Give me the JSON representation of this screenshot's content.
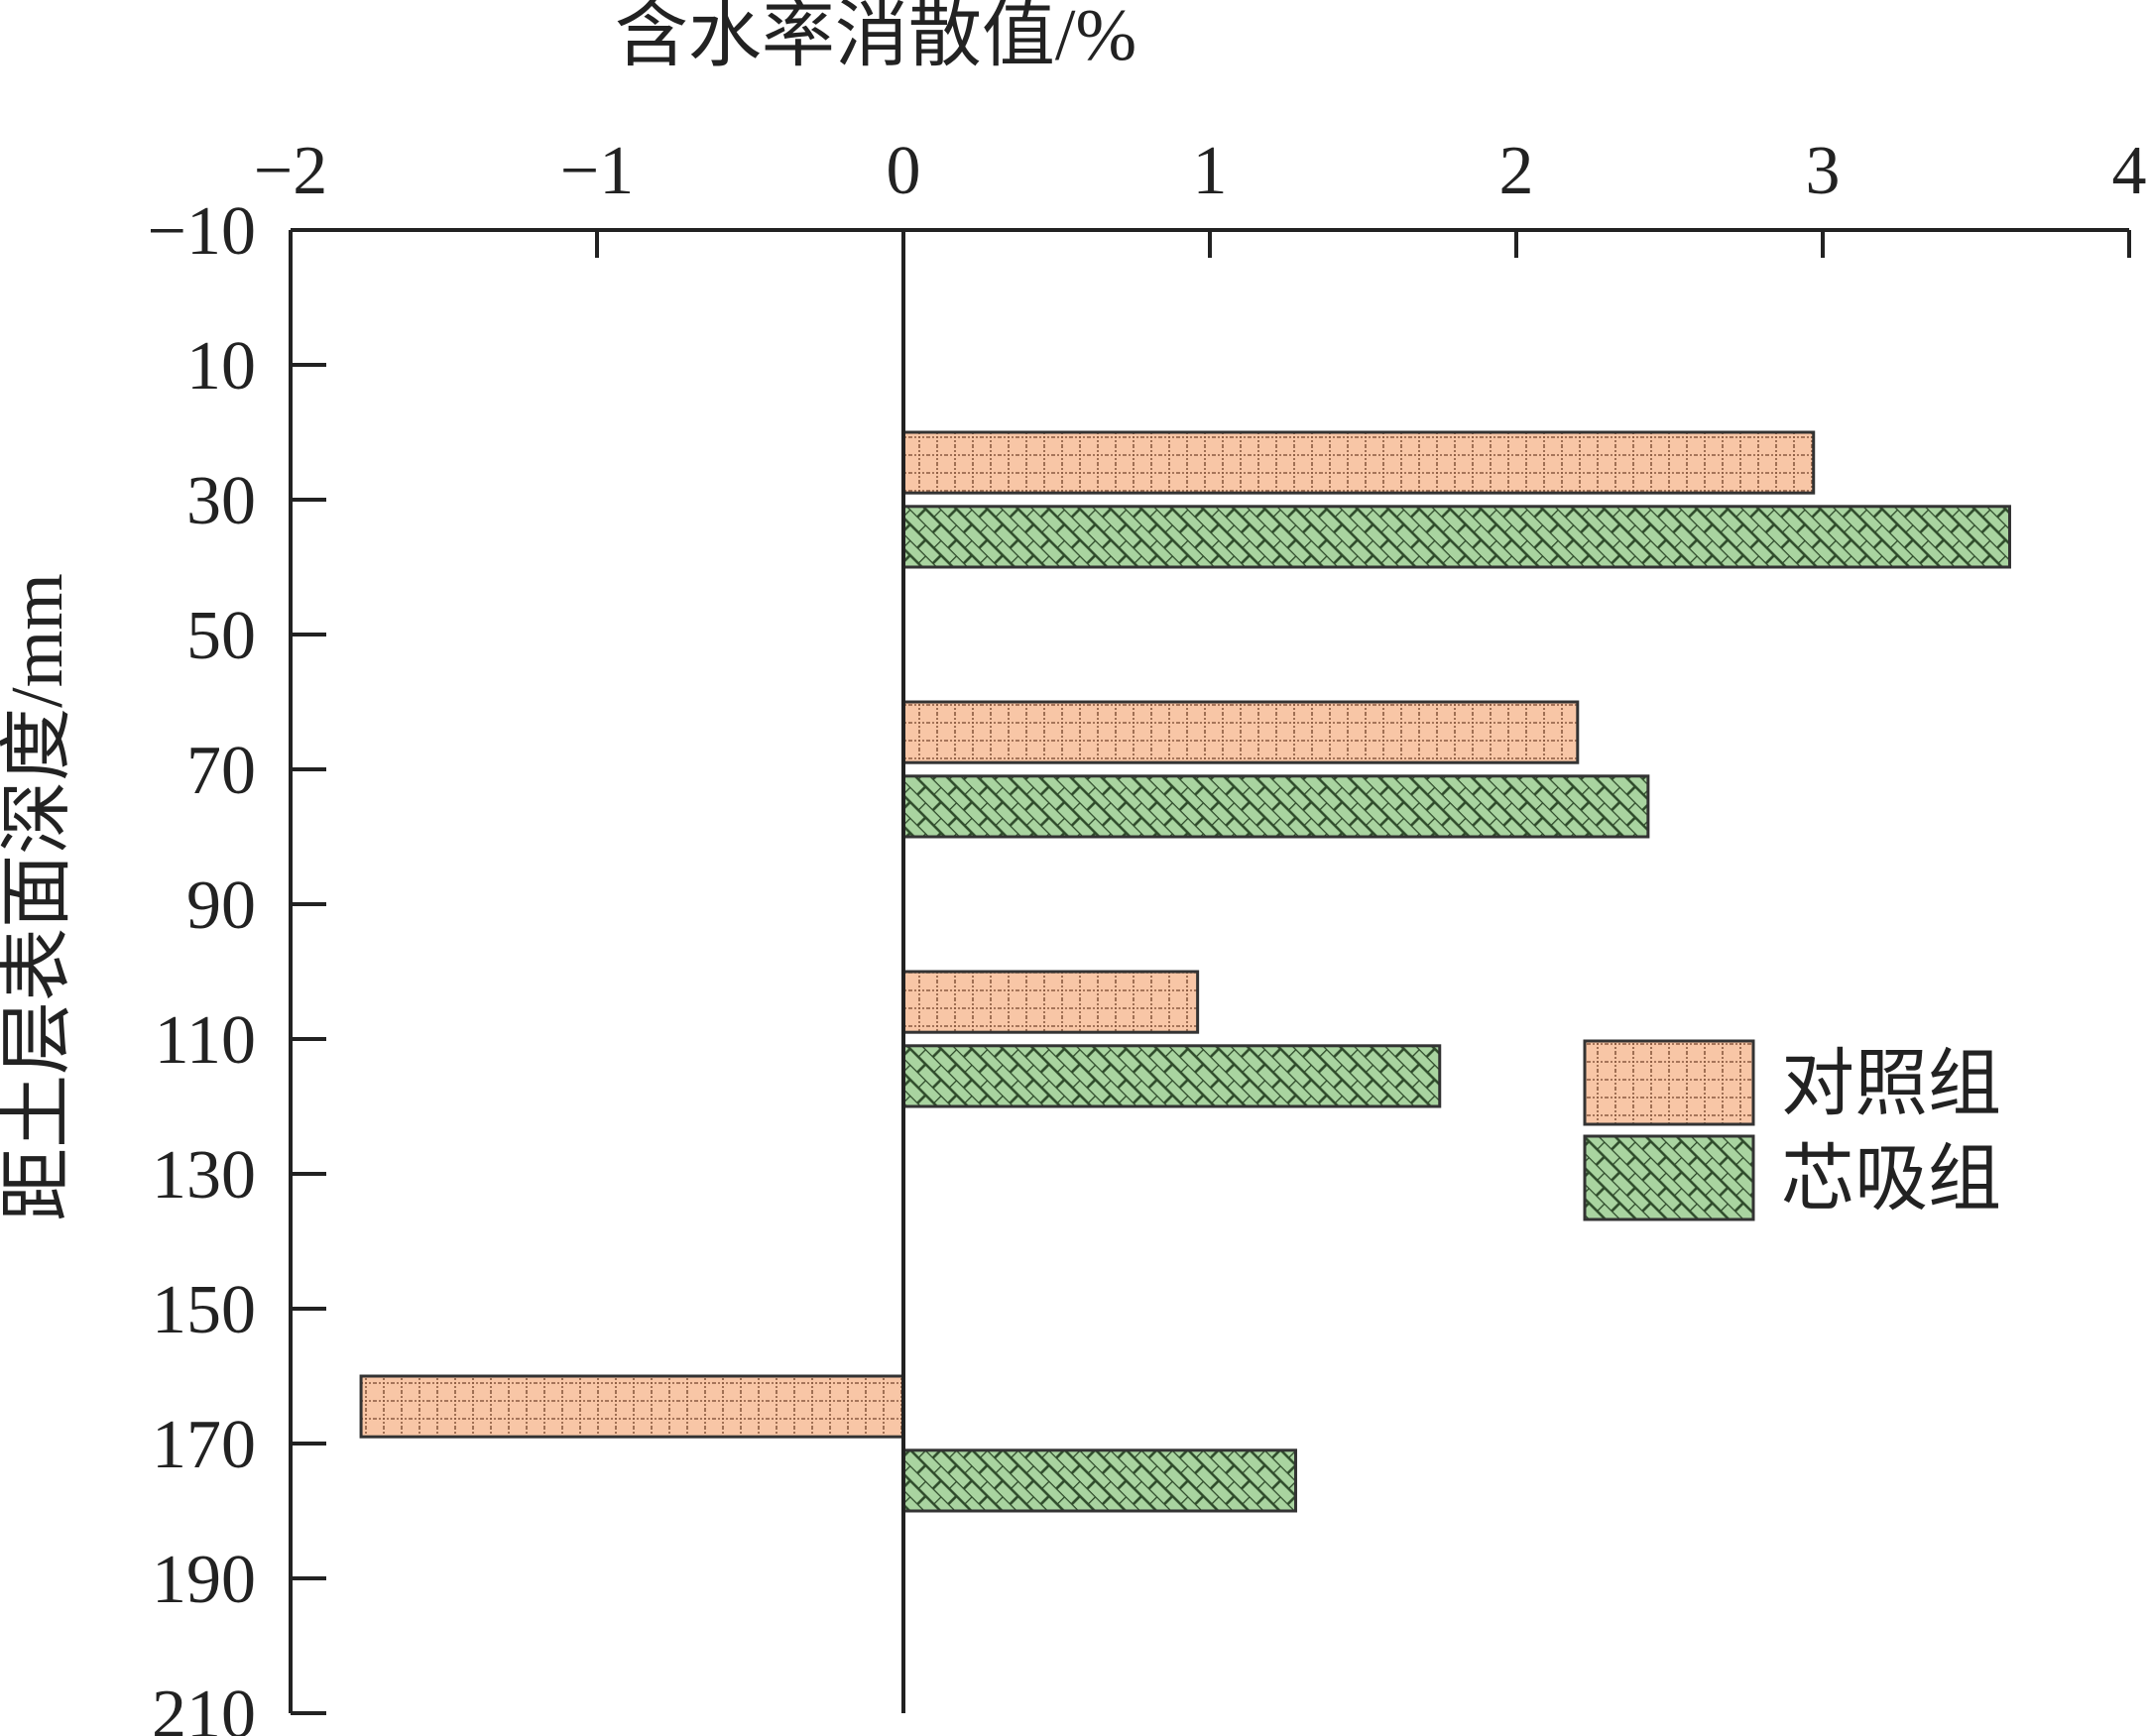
{
  "chart_data": {
    "type": "bar",
    "orientation": "horizontal",
    "xlabel": "含水率消散值/%",
    "ylabel": "距土层表面深度/mm",
    "xlim": [
      -2,
      4
    ],
    "ylim": [
      -10,
      210
    ],
    "x_ticks": [
      "−2",
      "−1",
      "0",
      "1",
      "2",
      "3",
      "4"
    ],
    "x_tick_values": [
      -2,
      -1,
      0,
      1,
      2,
      3,
      4
    ],
    "y_ticks": [
      "−10",
      "10",
      "30",
      "50",
      "70",
      "90",
      "110",
      "130",
      "150",
      "170",
      "190",
      "210"
    ],
    "y_tick_values": [
      -10,
      10,
      30,
      50,
      70,
      90,
      110,
      130,
      150,
      170,
      190,
      210
    ],
    "legend_position": "right",
    "series": [
      {
        "name": "对照组",
        "color": "#f8c6a6",
        "pattern": "dotted-grid",
        "bars": [
          {
            "y_from": 20,
            "y_to": 29,
            "value": 2.97
          },
          {
            "y_from": 60,
            "y_to": 69,
            "value": 2.2
          },
          {
            "y_from": 100,
            "y_to": 109,
            "value": 0.96
          },
          {
            "y_from": 160,
            "y_to": 169,
            "value": -1.77
          }
        ]
      },
      {
        "name": "芯吸组",
        "color": "#a9d4a0",
        "pattern": "brick-hatch",
        "bars": [
          {
            "y_from": 31,
            "y_to": 40,
            "value": 3.61
          },
          {
            "y_from": 71,
            "y_to": 80,
            "value": 2.43
          },
          {
            "y_from": 111,
            "y_to": 120,
            "value": 1.75
          },
          {
            "y_from": 171,
            "y_to": 180,
            "value": 1.28
          }
        ]
      }
    ]
  }
}
